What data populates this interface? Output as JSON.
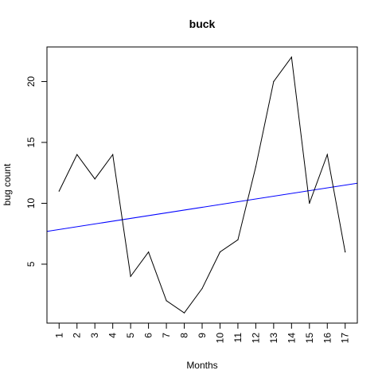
{
  "chart_data": {
    "type": "line",
    "title": "buck",
    "xlabel": "Months",
    "ylabel": "bug count",
    "x": [
      1,
      2,
      3,
      4,
      5,
      6,
      7,
      8,
      9,
      10,
      11,
      12,
      13,
      14,
      15,
      16,
      17
    ],
    "x_tick_labels": [
      "1",
      "2",
      "3",
      "4",
      "5",
      "6",
      "7",
      "8",
      "9",
      "10",
      "11",
      "12",
      "13",
      "14",
      "15",
      "16",
      "17"
    ],
    "xlim": [
      0.32,
      17.68
    ],
    "ylim": [
      0.16,
      22.84
    ],
    "y_ticks": [
      5,
      10,
      15,
      20
    ],
    "series": [
      {
        "color": "#000000",
        "values": [
          11,
          14,
          12,
          14,
          4,
          6,
          2,
          1,
          3,
          6,
          7,
          13,
          20,
          22,
          10,
          14,
          6
        ]
      }
    ],
    "trend_line": {
      "color": "#0000ff",
      "intercept": 7.62,
      "slope": 0.228
    },
    "grid": false,
    "legend": "none"
  }
}
